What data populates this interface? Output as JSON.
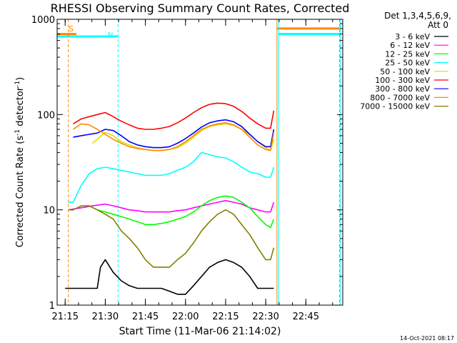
{
  "chart_data": {
    "type": "line",
    "title": "RHESSI Observing Summary Count Rates, Corrected",
    "xlabel": "Start Time (11-Mar-06 21:14:02)",
    "ylabel": "Corrected Count Rate (s⁻¹ detector⁻¹)",
    "ylabel_main": "Corrected Count Rate (s",
    "ylabel_sup1": "-1",
    "ylabel_mid": " detector",
    "ylabel_sup2": "-1",
    "ylabel_end": ")",
    "yscale": "log",
    "ylim": [
      1,
      1000
    ],
    "xlim_minutes": [
      21.2,
      22.98
    ],
    "x_ticks": [
      {
        "label": "21:15",
        "t": 21.25
      },
      {
        "label": "21:30",
        "t": 21.5
      },
      {
        "label": "21:45",
        "t": 21.75
      },
      {
        "label": "22:00",
        "t": 22.0
      },
      {
        "label": "22:15",
        "t": 22.25
      },
      {
        "label": "22:30",
        "t": 22.5
      },
      {
        "label": "22:45",
        "t": 22.75
      }
    ],
    "y_ticks": [
      {
        "label": "1",
        "v": 1
      },
      {
        "label": "10",
        "v": 10
      },
      {
        "label": "100",
        "v": 100
      },
      {
        "label": "1000",
        "v": 1000
      }
    ],
    "detector_text_line1": "Det 1,3,4,5,6,9,",
    "detector_text_line2": "Att 0",
    "markers": {
      "saa_label": "S",
      "night_label": "N"
    },
    "timestamp": "14-Oct-2021 08:17",
    "series": [
      {
        "name": "3 - 6 keV",
        "color": "#000000",
        "x": [
          21.25,
          21.45,
          21.47,
          21.5,
          21.55,
          21.6,
          21.65,
          21.7,
          21.75,
          21.8,
          21.85,
          21.9,
          21.95,
          22.0,
          22.05,
          22.1,
          22.15,
          22.2,
          22.25,
          22.3,
          22.35,
          22.4,
          22.45,
          22.5,
          22.55
        ],
        "values": [
          1.5,
          1.5,
          2.5,
          3.0,
          2.2,
          1.8,
          1.6,
          1.5,
          1.5,
          1.5,
          1.5,
          1.4,
          1.3,
          1.3,
          1.6,
          2.0,
          2.5,
          2.8,
          3.0,
          2.8,
          2.5,
          2.0,
          1.5,
          1.5,
          1.5
        ]
      },
      {
        "name": "6 - 12 keV",
        "color": "#ff00ff",
        "x": [
          21.27,
          21.35,
          21.42,
          21.5,
          21.55,
          21.6,
          21.65,
          21.7,
          21.75,
          21.8,
          21.85,
          21.9,
          21.95,
          22.0,
          22.05,
          22.1,
          22.15,
          22.2,
          22.25,
          22.3,
          22.35,
          22.4,
          22.45,
          22.5,
          22.53,
          22.55
        ],
        "values": [
          10,
          10.5,
          11,
          11.5,
          11,
          10.5,
          10,
          9.8,
          9.5,
          9.5,
          9.5,
          9.5,
          9.8,
          10,
          10.5,
          11,
          11.5,
          12,
          12.5,
          12,
          11.5,
          10.5,
          10,
          9.5,
          9.5,
          12
        ]
      },
      {
        "name": "12 - 25 keV",
        "color": "#00ff00",
        "x": [
          21.4,
          21.45,
          21.5,
          21.55,
          21.6,
          21.65,
          21.7,
          21.75,
          21.8,
          21.85,
          21.9,
          21.95,
          22.0,
          22.05,
          22.1,
          22.15,
          22.2,
          22.25,
          22.3,
          22.35,
          22.4,
          22.45,
          22.5,
          22.53,
          22.55
        ],
        "values": [
          11,
          10,
          9.5,
          9,
          8.5,
          8,
          7.5,
          7,
          7,
          7.2,
          7.5,
          8,
          8.5,
          9.5,
          11,
          12.5,
          13.5,
          14,
          13.5,
          12,
          10.5,
          8.5,
          7,
          6.5,
          8
        ]
      },
      {
        "name": "25 - 50 keV",
        "color": "#00ffff",
        "x": [
          21.27,
          21.3,
          21.35,
          21.4,
          21.45,
          21.5,
          21.55,
          21.6,
          21.65,
          21.7,
          21.75,
          21.8,
          21.85,
          21.9,
          21.95,
          22.0,
          22.05,
          22.1,
          22.15,
          22.2,
          22.25,
          22.3,
          22.35,
          22.4,
          22.45,
          22.5,
          22.53,
          22.55
        ],
        "values": [
          12,
          12,
          18,
          24,
          27,
          28,
          27,
          26,
          25,
          24,
          23,
          23,
          23,
          24,
          26,
          28,
          32,
          40,
          38,
          36,
          35,
          32,
          28,
          25,
          24,
          22,
          22,
          28
        ]
      },
      {
        "name": "50 - 100 keV",
        "color": "#dddd00",
        "x": [
          21.42,
          21.45,
          21.5,
          21.55,
          21.6,
          21.65,
          21.7,
          21.75,
          21.8,
          21.85,
          21.9,
          21.95,
          22.0,
          22.05,
          22.1,
          22.15,
          22.2,
          22.25,
          22.3,
          22.35,
          22.4,
          22.45,
          22.5,
          22.53,
          22.55
        ],
        "values": [
          50,
          55,
          65,
          60,
          52,
          48,
          45,
          43,
          42,
          42,
          43,
          45,
          50,
          58,
          68,
          75,
          78,
          80,
          77,
          70,
          62,
          52,
          45,
          42,
          55
        ]
      },
      {
        "name": "100 - 300 keV",
        "color": "#ff0000",
        "x": [
          21.3,
          21.35,
          21.4,
          21.45,
          21.5,
          21.55,
          21.6,
          21.65,
          21.7,
          21.75,
          21.8,
          21.85,
          21.9,
          21.95,
          22.0,
          22.05,
          22.1,
          22.15,
          22.2,
          22.25,
          22.3,
          22.35,
          22.4,
          22.45,
          22.5,
          22.53,
          22.55
        ],
        "values": [
          80,
          90,
          95,
          100,
          105,
          95,
          85,
          78,
          72,
          70,
          70,
          72,
          75,
          82,
          92,
          105,
          118,
          128,
          132,
          130,
          122,
          108,
          92,
          80,
          72,
          72,
          110
        ]
      },
      {
        "name": "300 - 800 keV",
        "color": "#0000ff",
        "x": [
          21.3,
          21.35,
          21.4,
          21.45,
          21.5,
          21.55,
          21.6,
          21.65,
          21.7,
          21.75,
          21.8,
          21.85,
          21.9,
          21.95,
          22.0,
          22.05,
          22.1,
          22.15,
          22.2,
          22.25,
          22.3,
          22.35,
          22.4,
          22.45,
          22.5,
          22.53,
          22.55
        ],
        "values": [
          58,
          60,
          62,
          64,
          70,
          68,
          60,
          52,
          48,
          46,
          45,
          45,
          46,
          50,
          56,
          64,
          74,
          82,
          86,
          88,
          84,
          75,
          62,
          52,
          46,
          46,
          70
        ]
      },
      {
        "name": "800 - 7000 keV",
        "color": "#ff8800",
        "x": [
          21.3,
          21.35,
          21.4,
          21.45,
          21.5,
          21.55,
          21.6,
          21.65,
          21.7,
          21.75,
          21.8,
          21.85,
          21.9,
          21.95,
          22.0,
          22.05,
          22.1,
          22.15,
          22.2,
          22.25,
          22.3,
          22.35,
          22.4,
          22.45,
          22.5,
          22.53,
          22.55
        ],
        "values": [
          70,
          80,
          78,
          70,
          62,
          55,
          50,
          46,
          44,
          43,
          42,
          42,
          43,
          46,
          52,
          60,
          70,
          76,
          80,
          82,
          78,
          70,
          58,
          48,
          43,
          42,
          65
        ]
      },
      {
        "name": "7000 - 15000 keV",
        "color": "#808000",
        "x": [
          21.27,
          21.3,
          21.35,
          21.4,
          21.45,
          21.5,
          21.55,
          21.6,
          21.65,
          21.7,
          21.75,
          21.8,
          21.85,
          21.9,
          21.95,
          22.0,
          22.05,
          22.1,
          22.15,
          22.2,
          22.25,
          22.3,
          22.35,
          22.4,
          22.45,
          22.5,
          22.53,
          22.55
        ],
        "values": [
          10,
          10,
          11,
          11,
          10,
          9,
          8,
          6,
          5,
          4,
          3,
          2.5,
          2.5,
          2.5,
          3,
          3.5,
          4.5,
          6,
          7.5,
          9,
          10,
          9,
          7,
          5.5,
          4,
          3,
          3,
          4
        ]
      }
    ],
    "vlines": [
      {
        "t": 21.19,
        "color": "#00ffff",
        "style": "solid"
      },
      {
        "t": 21.27,
        "color": "#ff8800",
        "style": "dashed"
      },
      {
        "t": 21.58,
        "color": "#00ffff",
        "style": "dashed"
      },
      {
        "t": 22.57,
        "color": "#ff8800",
        "style": "solid"
      },
      {
        "t": 22.58,
        "color": "#00ffff",
        "style": "solid"
      },
      {
        "t": 22.96,
        "color": "#ff8800",
        "style": "dashed"
      },
      {
        "t": 22.965,
        "color": "#00ffff",
        "style": "solid"
      }
    ],
    "bars": [
      {
        "name": "saa",
        "t0": 21.2,
        "t1": 21.32,
        "level": 700,
        "color": "#ff8800"
      },
      {
        "name": "night",
        "t0": 21.2,
        "t1": 21.58,
        "level": 660,
        "color": "#00ffff"
      },
      {
        "name": "saa-late",
        "t0": 22.57,
        "t1": 22.96,
        "level": 800,
        "color": "#ff8800"
      },
      {
        "name": "night-late",
        "t0": 22.58,
        "t1": 22.965,
        "level": 700,
        "color": "#00ffff"
      }
    ],
    "grid": false,
    "legend_position": "top-right"
  }
}
